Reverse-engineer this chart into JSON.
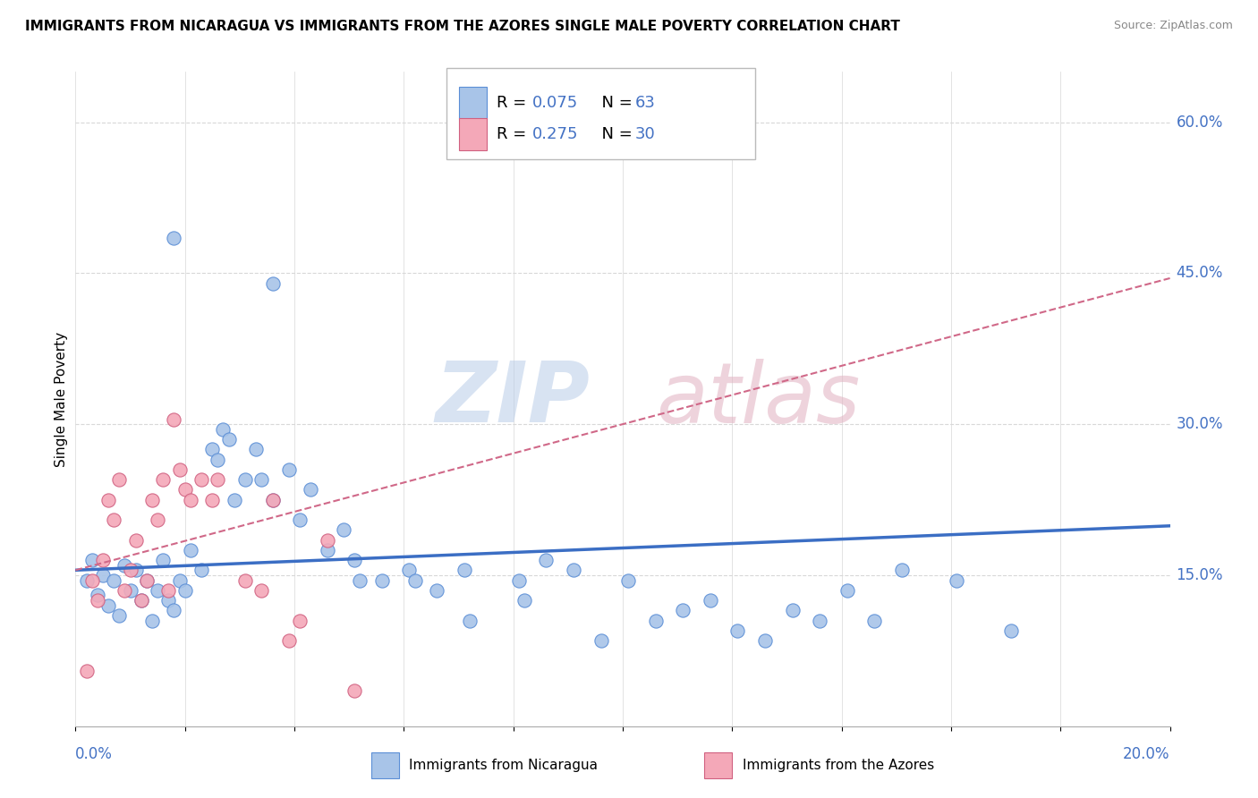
{
  "title": "IMMIGRANTS FROM NICARAGUA VS IMMIGRANTS FROM THE AZORES SINGLE MALE POVERTY CORRELATION CHART",
  "source": "Source: ZipAtlas.com",
  "ylabel": "Single Male Poverty",
  "right_yticks": [
    0.6,
    0.45,
    0.3,
    0.15
  ],
  "right_yticklabels": [
    "60.0%",
    "45.0%",
    "30.0%",
    "15.0%"
  ],
  "xmin": 0.0,
  "xmax": 0.2,
  "ymin": 0.0,
  "ymax": 0.65,
  "blue_color": "#a8c4e8",
  "blue_edge_color": "#5b8ed6",
  "pink_color": "#f4a8b8",
  "pink_edge_color": "#d06080",
  "blue_line_color": "#3b6ec4",
  "pink_line_color": "#d06888",
  "grid_color": "#d8d8d8",
  "accent_color": "#4472c4",
  "blue_scatter": [
    [
      0.002,
      0.145
    ],
    [
      0.003,
      0.165
    ],
    [
      0.004,
      0.13
    ],
    [
      0.005,
      0.15
    ],
    [
      0.006,
      0.12
    ],
    [
      0.007,
      0.145
    ],
    [
      0.008,
      0.11
    ],
    [
      0.009,
      0.16
    ],
    [
      0.01,
      0.135
    ],
    [
      0.011,
      0.155
    ],
    [
      0.012,
      0.125
    ],
    [
      0.013,
      0.145
    ],
    [
      0.014,
      0.105
    ],
    [
      0.015,
      0.135
    ],
    [
      0.016,
      0.165
    ],
    [
      0.017,
      0.125
    ],
    [
      0.018,
      0.115
    ],
    [
      0.019,
      0.145
    ],
    [
      0.02,
      0.135
    ],
    [
      0.021,
      0.175
    ],
    [
      0.023,
      0.155
    ],
    [
      0.025,
      0.275
    ],
    [
      0.026,
      0.265
    ],
    [
      0.027,
      0.295
    ],
    [
      0.028,
      0.285
    ],
    [
      0.031,
      0.245
    ],
    [
      0.033,
      0.275
    ],
    [
      0.036,
      0.225
    ],
    [
      0.039,
      0.255
    ],
    [
      0.041,
      0.205
    ],
    [
      0.043,
      0.235
    ],
    [
      0.046,
      0.175
    ],
    [
      0.049,
      0.195
    ],
    [
      0.051,
      0.165
    ],
    [
      0.056,
      0.145
    ],
    [
      0.061,
      0.155
    ],
    [
      0.066,
      0.135
    ],
    [
      0.071,
      0.155
    ],
    [
      0.081,
      0.145
    ],
    [
      0.086,
      0.165
    ],
    [
      0.091,
      0.155
    ],
    [
      0.096,
      0.085
    ],
    [
      0.101,
      0.145
    ],
    [
      0.106,
      0.105
    ],
    [
      0.111,
      0.115
    ],
    [
      0.116,
      0.125
    ],
    [
      0.121,
      0.095
    ],
    [
      0.126,
      0.085
    ],
    [
      0.131,
      0.115
    ],
    [
      0.136,
      0.105
    ],
    [
      0.141,
      0.135
    ],
    [
      0.146,
      0.105
    ],
    [
      0.151,
      0.155
    ],
    [
      0.161,
      0.145
    ],
    [
      0.018,
      0.485
    ],
    [
      0.036,
      0.44
    ],
    [
      0.052,
      0.145
    ],
    [
      0.062,
      0.145
    ],
    [
      0.072,
      0.105
    ],
    [
      0.082,
      0.125
    ],
    [
      0.171,
      0.095
    ],
    [
      0.029,
      0.225
    ],
    [
      0.034,
      0.245
    ]
  ],
  "pink_scatter": [
    [
      0.002,
      0.055
    ],
    [
      0.003,
      0.145
    ],
    [
      0.004,
      0.125
    ],
    [
      0.005,
      0.165
    ],
    [
      0.006,
      0.225
    ],
    [
      0.007,
      0.205
    ],
    [
      0.008,
      0.245
    ],
    [
      0.009,
      0.135
    ],
    [
      0.01,
      0.155
    ],
    [
      0.011,
      0.185
    ],
    [
      0.012,
      0.125
    ],
    [
      0.013,
      0.145
    ],
    [
      0.014,
      0.225
    ],
    [
      0.015,
      0.205
    ],
    [
      0.016,
      0.245
    ],
    [
      0.017,
      0.135
    ],
    [
      0.018,
      0.305
    ],
    [
      0.019,
      0.255
    ],
    [
      0.02,
      0.235
    ],
    [
      0.021,
      0.225
    ],
    [
      0.023,
      0.245
    ],
    [
      0.025,
      0.225
    ],
    [
      0.026,
      0.245
    ],
    [
      0.031,
      0.145
    ],
    [
      0.034,
      0.135
    ],
    [
      0.036,
      0.225
    ],
    [
      0.039,
      0.085
    ],
    [
      0.041,
      0.105
    ],
    [
      0.046,
      0.185
    ],
    [
      0.051,
      0.035
    ]
  ],
  "blue_trend": {
    "slope": 0.22,
    "intercept": 0.155
  },
  "pink_trend": {
    "slope": 1.45,
    "intercept": 0.155
  }
}
